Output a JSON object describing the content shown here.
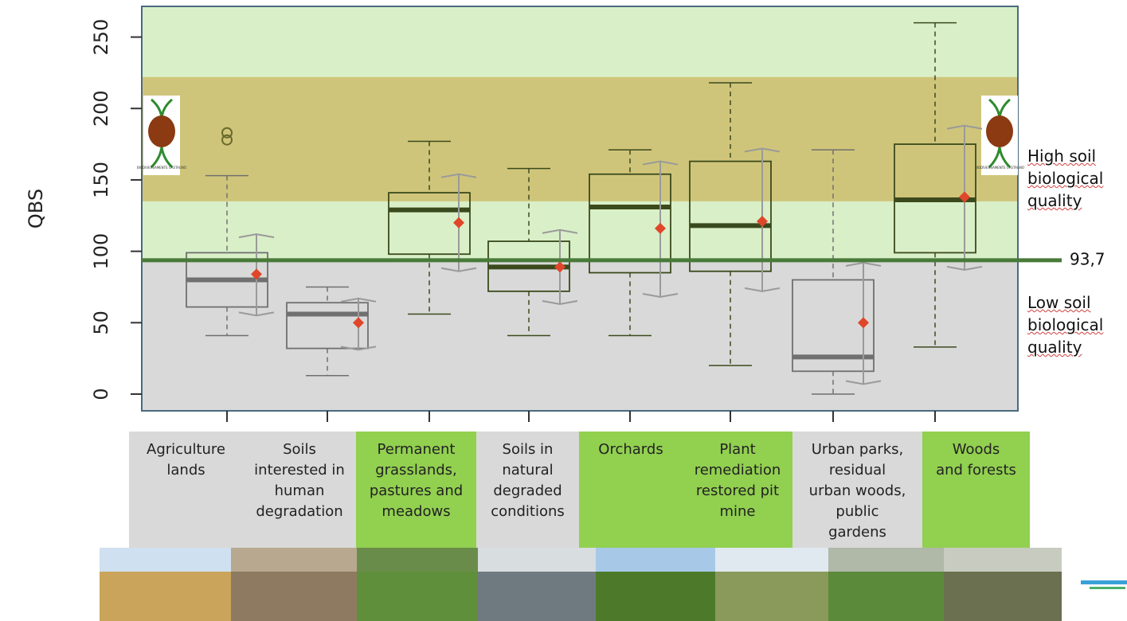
{
  "chart_data": {
    "type": "boxplot",
    "y_label": "QBS",
    "ylim": [
      -11.7,
      271.5
    ],
    "yticks": [
      0,
      50,
      100,
      150,
      200,
      250
    ],
    "band": [
      135,
      222
    ],
    "threshold": {
      "value": 93.7,
      "label": "93,7"
    },
    "high_label": "High soil\nbiological\nquality",
    "low_label": "Low soil\nbiological\nquality",
    "logo_text": "BIODIVERSAMENTE CASTAGNO",
    "mean_color": "#e0462a",
    "categories": [
      "Agriculture\nlands",
      "Soils\ninterested in\nhuman\ndegradation",
      "Permanent\ngrasslands,\npastures and\nmeadows",
      "Soils in\nnatural\ndegraded\nconditions",
      "Orchards",
      "Plant\nremediation\nrestored pit\nmine",
      "Urban parks,\nresidual\nurban woods,\npublic\ngardens",
      "Woods\nand forests"
    ],
    "label_colors": [
      "#d9d9d9",
      "#d9d9d9",
      "#92d050",
      "#d9d9d9",
      "#92d050",
      "#92d050",
      "#d9d9d9",
      "#92d050"
    ],
    "boxes": [
      {
        "min": 41,
        "q1": 61,
        "median": 80,
        "q3": 99,
        "max": 153,
        "outliers": [
          178,
          183
        ],
        "range_min": 55,
        "range_max": 112,
        "mean": 84,
        "color": "#707070"
      },
      {
        "min": 13,
        "q1": 32,
        "median": 56,
        "q3": 64,
        "max": 75,
        "outliers": [],
        "range_min": 31,
        "range_max": 67,
        "mean": 50,
        "color": "#707070"
      },
      {
        "min": 56,
        "q1": 98,
        "median": 129,
        "q3": 141,
        "max": 177,
        "outliers": [],
        "range_min": 86,
        "range_max": 154,
        "mean": 120,
        "color": "#3b4a1c"
      },
      {
        "min": 41,
        "q1": 72,
        "median": 89,
        "q3": 107,
        "max": 158,
        "outliers": [],
        "range_min": 63,
        "range_max": 115,
        "mean": 89,
        "color": "#3b4a1c"
      },
      {
        "min": 41,
        "q1": 85,
        "median": 131,
        "q3": 154,
        "max": 171,
        "outliers": [],
        "range_min": 68,
        "range_max": 163,
        "mean": 116,
        "color": "#3b4a1c"
      },
      {
        "min": 20,
        "q1": 86,
        "median": 118,
        "q3": 163,
        "max": 218,
        "outliers": [],
        "range_min": 72,
        "range_max": 172,
        "mean": 121,
        "color": "#3b4a1c"
      },
      {
        "min": 0,
        "q1": 16,
        "median": 26,
        "q3": 80,
        "max": 171,
        "outliers": [],
        "range_min": 7,
        "range_max": 92,
        "mean": 50,
        "color": "#707070"
      },
      {
        "min": 33,
        "q1": 99,
        "median": 136,
        "q3": 175,
        "max": 260,
        "outliers": [],
        "range_min": 87,
        "range_max": 188,
        "mean": 138,
        "color": "#3b4a1c"
      }
    ]
  }
}
